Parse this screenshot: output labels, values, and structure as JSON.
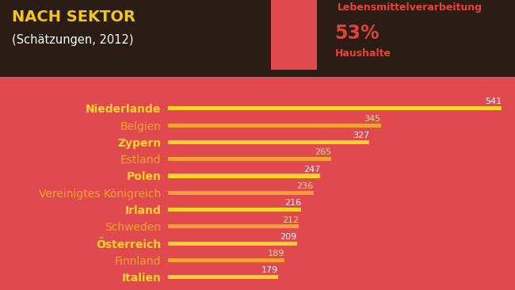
{
  "chart_data": {
    "type": "bar",
    "orientation": "horizontal",
    "title": "NACH SEKTOR",
    "subtitle": "(Schätzungen, 2012)",
    "annotations": [
      "Lebensmittelverarbeitung",
      "53%",
      "Haushalte"
    ],
    "categories": [
      "Niederlande",
      "Belgien",
      "Zypern",
      "Estland",
      "Polen",
      "Vereinigtes Königreich",
      "Irland",
      "Schweden",
      "Österreich",
      "Finnland",
      "Italien"
    ],
    "values": [
      541,
      345,
      327,
      265,
      247,
      236,
      216,
      212,
      209,
      189,
      179
    ],
    "colors": [
      "#ffd42a",
      "#f7a134",
      "#ffd42a",
      "#f7a134",
      "#ffd42a",
      "#f7a134",
      "#ffd42a",
      "#f7a134",
      "#ffd42a",
      "#f7a134",
      "#ffd42a"
    ],
    "xlim": [
      0,
      541
    ],
    "data_labels": true,
    "tick_labels": "y",
    "grid": false
  }
}
